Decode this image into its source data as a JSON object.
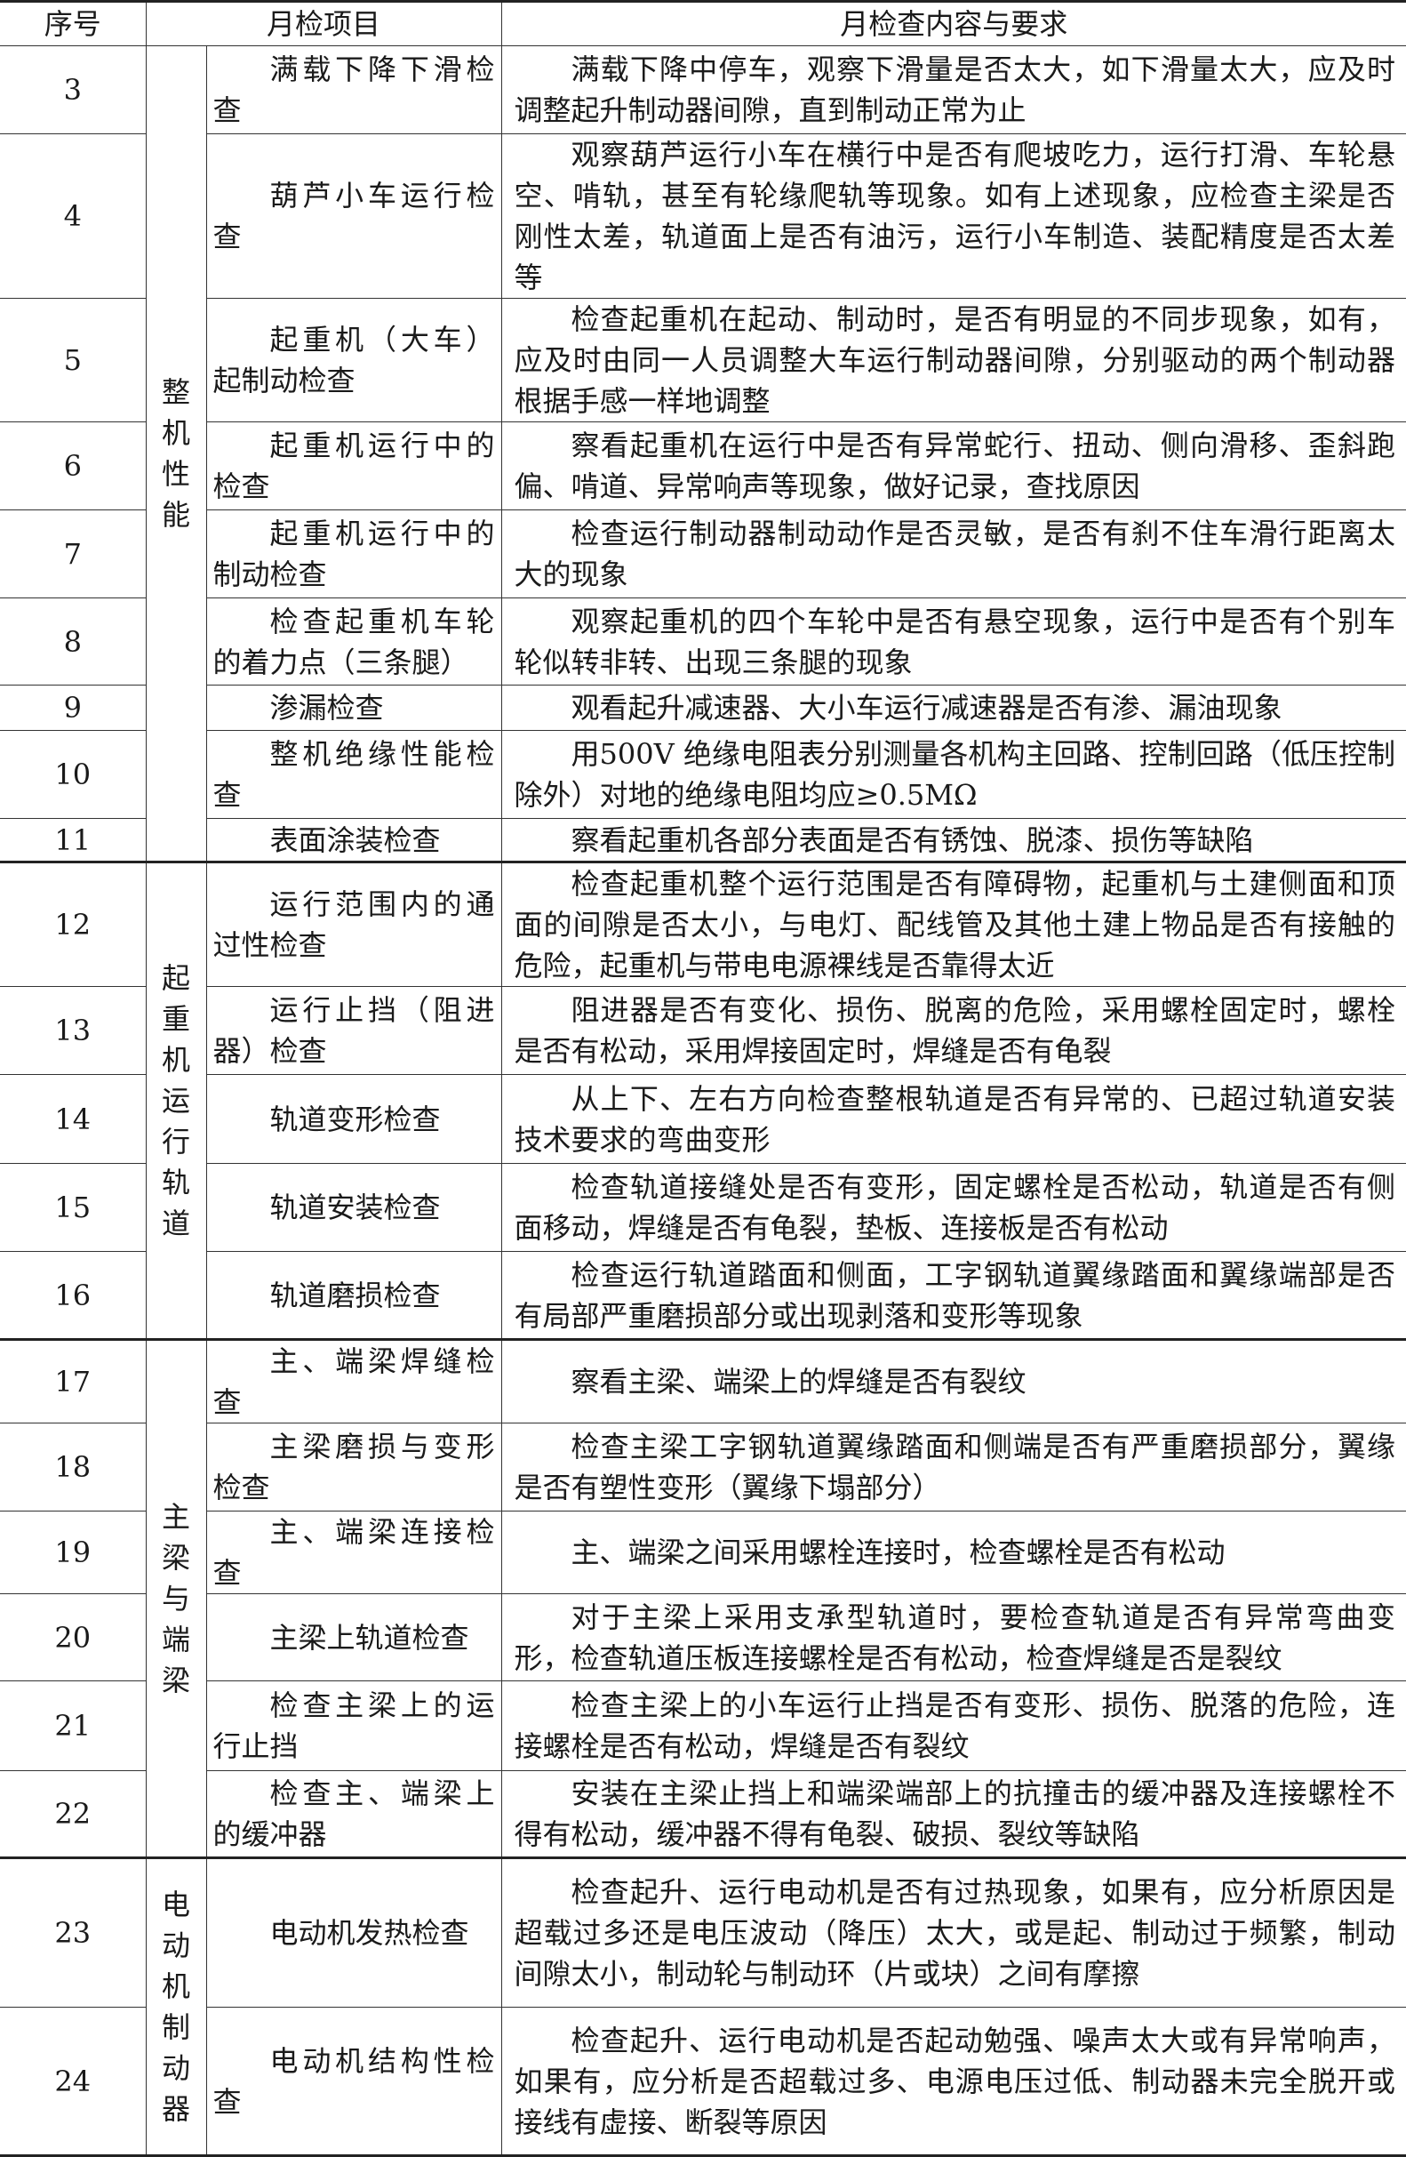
{
  "headers": {
    "no": "序号",
    "item": "月检项目",
    "content": "月检查内容与要求"
  },
  "groups": [
    "整机性能",
    "起重机运行轨道",
    "主梁与端梁",
    "电动机制动器"
  ],
  "rows": [
    {
      "no": "3",
      "item": "满载下降下滑检查",
      "content": "满载下降中停车，观察下滑量是否太大，如下滑量太大，应及时调整起升制动器间隙，直到制动正常为止"
    },
    {
      "no": "4",
      "item": "葫芦小车运行检查",
      "content": "观察葫芦运行小车在横行中是否有爬坡吃力，运行打滑、车轮悬空、啃轨，甚至有轮缘爬轨等现象。如有上述现象，应检查主梁是否刚性太差，轨道面上是否有油污，运行小车制造、装配精度是否太差等"
    },
    {
      "no": "5",
      "item": "起重机（大车）起制动检查",
      "content": "检查起重机在起动、制动时，是否有明显的不同步现象，如有，应及时由同一人员调整大车运行制动器间隙，分别驱动的两个制动器根据手感一样地调整"
    },
    {
      "no": "6",
      "item": "起重机运行中的检查",
      "content": "察看起重机在运行中是否有异常蛇行、扭动、侧向滑移、歪斜跑偏、啃道、异常响声等现象，做好记录，查找原因"
    },
    {
      "no": "7",
      "item": "起重机运行中的制动检查",
      "content": "检查运行制动器制动动作是否灵敏，是否有刹不住车滑行距离太大的现象"
    },
    {
      "no": "8",
      "item": "检查起重机车轮的着力点（三条腿）",
      "content": "观察起重机的四个车轮中是否有悬空现象，运行中是否有个别车轮似转非转、出现三条腿的现象"
    },
    {
      "no": "9",
      "item": "渗漏检查",
      "content": "观看起升减速器、大小车运行减速器是否有渗、漏油现象"
    },
    {
      "no": "10",
      "item": "整机绝缘性能检查",
      "content": "用500V 绝缘电阻表分别测量各机构主回路、控制回路（低压控制除外）对地的绝缘电阻均应≥0.5MΩ"
    },
    {
      "no": "11",
      "item": "表面涂装检查",
      "content": "察看起重机各部分表面是否有锈蚀、脱漆、损伤等缺陷"
    },
    {
      "no": "12",
      "item": "运行范围内的通过性检查",
      "content": "检查起重机整个运行范围是否有障碍物，起重机与土建侧面和顶面的间隙是否太小，与电灯、配线管及其他土建上物品是否有接触的危险，起重机与带电电源裸线是否靠得太近"
    },
    {
      "no": "13",
      "item": "运行止挡（阻进器）检查",
      "content": "阻进器是否有变化、损伤、脱离的危险，采用螺栓固定时，螺栓是否有松动，采用焊接固定时，焊缝是否有龟裂"
    },
    {
      "no": "14",
      "item": "轨道变形检查",
      "content": "从上下、左右方向检查整根轨道是否有异常的、已超过轨道安装技术要求的弯曲变形"
    },
    {
      "no": "15",
      "item": "轨道安装检查",
      "content": "检查轨道接缝处是否有变形，固定螺栓是否松动，轨道是否有侧面移动，焊缝是否有龟裂，垫板、连接板是否有松动"
    },
    {
      "no": "16",
      "item": "轨道磨损检查",
      "content": "检查运行轨道踏面和侧面，工字钢轨道翼缘踏面和翼缘端部是否有局部严重磨损部分或出现剥落和变形等现象"
    },
    {
      "no": "17",
      "item": "主、端梁焊缝检查",
      "content": "察看主梁、端梁上的焊缝是否有裂纹"
    },
    {
      "no": "18",
      "item": "主梁磨损与变形检查",
      "content": "检查主梁工字钢轨道翼缘踏面和侧端是否有严重磨损部分，翼缘是否有塑性变形（翼缘下塌部分）"
    },
    {
      "no": "19",
      "item": "主、端梁连接检查",
      "content": "主、端梁之间采用螺栓连接时，检查螺栓是否有松动"
    },
    {
      "no": "20",
      "item": "主梁上轨道检查",
      "content": "对于主梁上采用支承型轨道时，要检查轨道是否有异常弯曲变形，检查轨道压板连接螺栓是否有松动，检查焊缝是否是裂纹"
    },
    {
      "no": "21",
      "item": "检查主梁上的运行止挡",
      "content": "检查主梁上的小车运行止挡是否有变形、损伤、脱落的危险，连接螺栓是否有松动，焊缝是否有裂纹"
    },
    {
      "no": "22",
      "item": "检查主、端梁上的缓冲器",
      "content": "安装在主梁止挡上和端梁端部上的抗撞击的缓冲器及连接螺栓不得有松动，缓冲器不得有龟裂、破损、裂纹等缺陷"
    },
    {
      "no": "23",
      "item": "电动机发热检查",
      "content": "检查起升、运行电动机是否有过热现象，如果有，应分析原因是超载过多还是电压波动（降压）太大，或是起、制动过于频繁，制动间隙太小，制动轮与制动环（片或块）之间有摩擦"
    },
    {
      "no": "24",
      "item": "电动机结构性检查",
      "content": "检查起升、运行电动机是否起动勉强、噪声太大或有异常响声，如果有，应分析是否超载过多、电源电压过低、制动器未完全脱开或接线有虚接、断裂等原因"
    }
  ]
}
